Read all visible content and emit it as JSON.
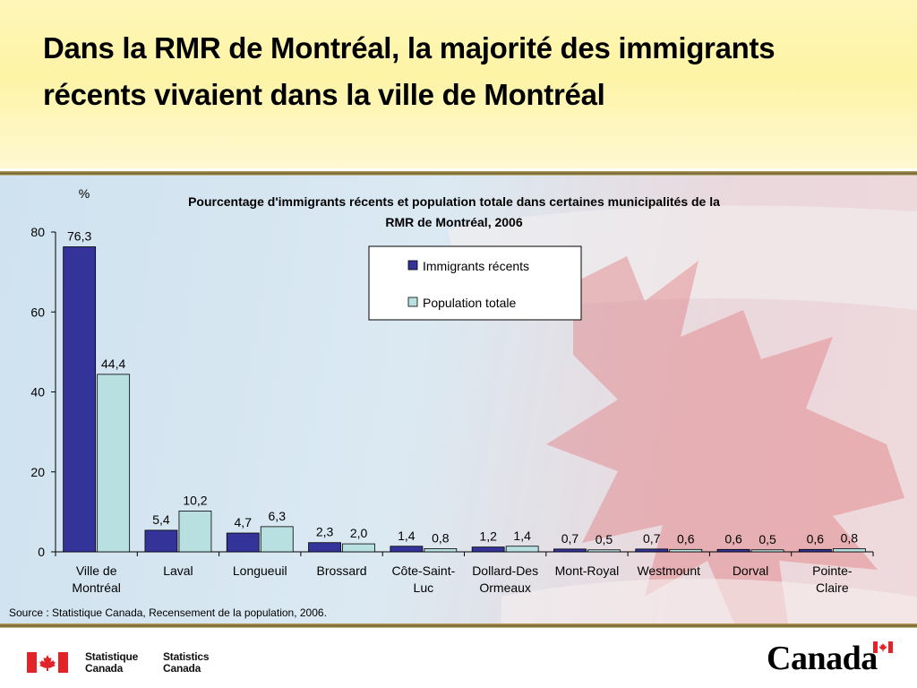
{
  "slide": {
    "title": "Dans la RMR de Montréal, la majorité des immigrants récents vivaient dans la ville de Montréal"
  },
  "footer": {
    "source": "Source : Statistique Canada, Recensement de la population, 2006.",
    "agency_fr": [
      "Statistique",
      "Canada"
    ],
    "agency_en": [
      "Statistics",
      "Canada"
    ],
    "wordmark": "Canada"
  },
  "colors": {
    "immigrants": "#33339a",
    "population": "#b8e0e0",
    "flag_red": "#e0242a"
  },
  "chart_data": {
    "type": "bar",
    "title": [
      "Pourcentage d'immigrants récents et population totale dans certaines municipalités de la",
      "RMR de Montréal, 2006"
    ],
    "ylabel": "%",
    "ylim": [
      0,
      80
    ],
    "yticks": [
      0,
      20,
      40,
      60,
      80
    ],
    "legend_position": "top-right",
    "categories": [
      [
        "Ville de",
        "Montréal"
      ],
      [
        "Laval"
      ],
      [
        "Longueuil"
      ],
      [
        "Brossard"
      ],
      [
        "Côte-Saint-",
        "Luc"
      ],
      [
        "Dollard-Des",
        "Ormeaux"
      ],
      [
        "Mont-Royal"
      ],
      [
        "Westmount"
      ],
      [
        "Dorval"
      ],
      [
        "Pointe-",
        "Claire"
      ]
    ],
    "series": [
      {
        "name": "Immigrants récents",
        "values": [
          76.3,
          5.4,
          4.7,
          2.3,
          1.4,
          1.2,
          0.7,
          0.7,
          0.6,
          0.6
        ],
        "labels": [
          "76,3",
          "5,4",
          "4,7",
          "2,3",
          "1,4",
          "1,2",
          "0,7",
          "0,7",
          "0,6",
          "0,6"
        ]
      },
      {
        "name": "Population totale",
        "values": [
          44.4,
          10.2,
          6.3,
          2.0,
          0.8,
          1.4,
          0.5,
          0.6,
          0.5,
          0.8
        ],
        "labels": [
          "44,4",
          "10,2",
          "6,3",
          "2,0",
          "0,8",
          "1,4",
          "0,5",
          "0,6",
          "0,5",
          "0,8"
        ]
      }
    ]
  }
}
